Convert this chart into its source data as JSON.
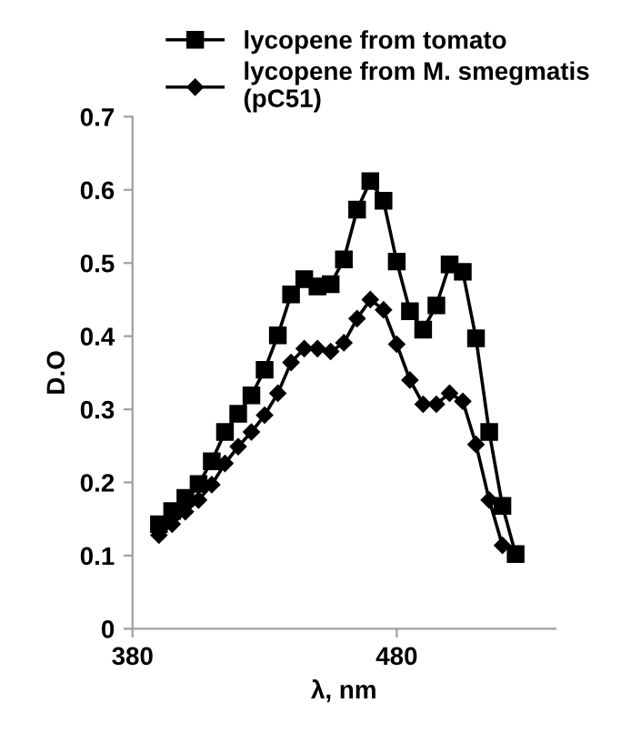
{
  "chart_data": {
    "type": "line",
    "xlabel": "λ, nm",
    "ylabel": "D.O",
    "xlim": [
      380,
      540
    ],
    "xticks": [
      380,
      480
    ],
    "ylim": [
      0,
      0.7
    ],
    "yticks": [
      0,
      0.1,
      0.2,
      0.3,
      0.4,
      0.5,
      0.6,
      0.7
    ],
    "grid": false,
    "legend": "top",
    "line_style": "solid",
    "series": [
      {
        "name": "lycopene from tomato",
        "color": "#000000",
        "marker": "square",
        "x": [
          390,
          395,
          400,
          405,
          410,
          415,
          420,
          425,
          430,
          435,
          440,
          445,
          450,
          455,
          460,
          465,
          470,
          475,
          480,
          485,
          490,
          495,
          500,
          505,
          510,
          515,
          520,
          525
        ],
        "values": [
          0.143,
          0.161,
          0.179,
          0.198,
          0.229,
          0.269,
          0.294,
          0.319,
          0.354,
          0.401,
          0.457,
          0.478,
          0.468,
          0.471,
          0.505,
          0.573,
          0.612,
          0.585,
          0.502,
          0.434,
          0.409,
          0.442,
          0.498,
          0.488,
          0.397,
          0.269,
          0.168,
          0.102
        ]
      },
      {
        "name": "lycopene from M. smegmatis (pC51)",
        "color": "#000000",
        "marker": "diamond",
        "x": [
          390,
          395,
          400,
          405,
          410,
          415,
          420,
          425,
          430,
          435,
          440,
          445,
          450,
          455,
          460,
          465,
          470,
          475,
          480,
          485,
          490,
          495,
          500,
          505,
          510,
          515,
          520
        ],
        "values": [
          0.128,
          0.143,
          0.16,
          0.176,
          0.197,
          0.226,
          0.249,
          0.269,
          0.292,
          0.322,
          0.364,
          0.383,
          0.383,
          0.379,
          0.391,
          0.424,
          0.45,
          0.436,
          0.389,
          0.34,
          0.307,
          0.307,
          0.322,
          0.311,
          0.252,
          0.176,
          0.114
        ]
      }
    ]
  }
}
